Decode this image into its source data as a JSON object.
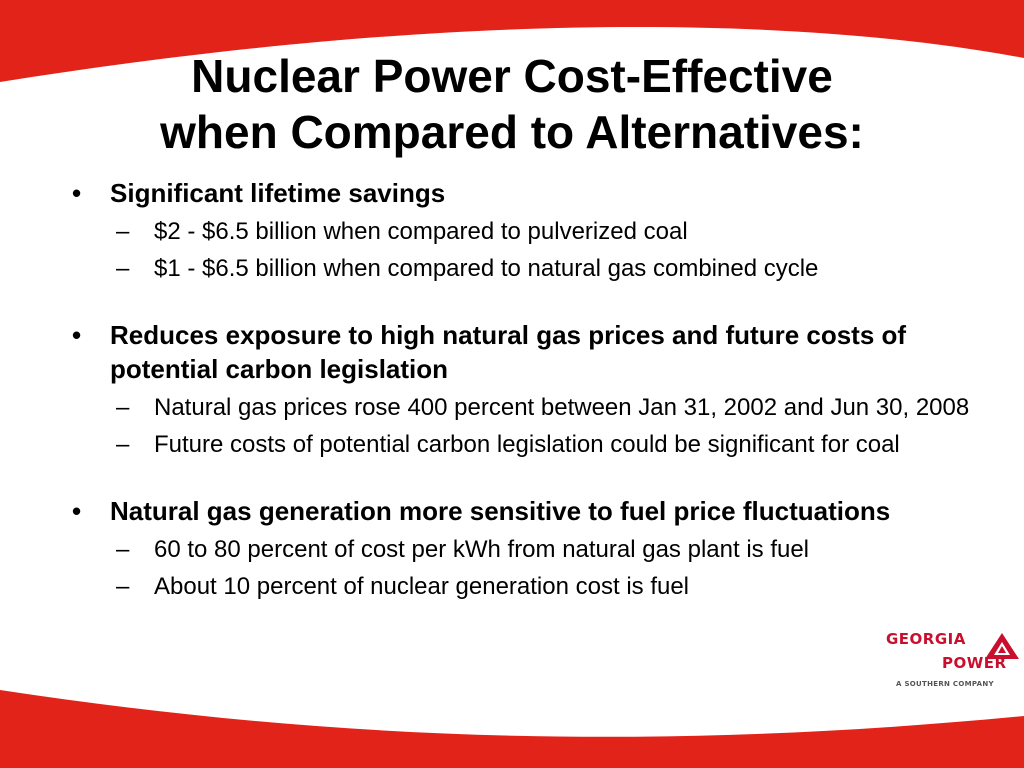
{
  "theme": {
    "accent": "#e2231a",
    "text": "#000000",
    "background": "#ffffff"
  },
  "title": {
    "line1": "Nuclear Power Cost-Effective",
    "line2": "when Compared to Alternatives:"
  },
  "bullet_glyph": "•",
  "dash_glyph": "–",
  "bullets": [
    {
      "text": "Significant lifetime savings",
      "subs": [
        "$2 - $6.5 billion when compared to pulverized coal",
        "$1 - $6.5 billion when compared to natural gas combined cycle"
      ]
    },
    {
      "text": "Reduces exposure to high natural gas prices and future costs of potential carbon legislation",
      "subs": [
        "Natural gas prices rose 400 percent between Jan 31, 2002 and Jun 30, 2008",
        "Future costs of potential carbon legislation could be significant for coal"
      ]
    },
    {
      "text": "Natural gas generation more sensitive to fuel price fluctuations",
      "subs": [
        "60 to 80 percent of cost per kWh from natural gas plant is fuel",
        "About 10 percent of nuclear generation cost is fuel"
      ]
    }
  ],
  "logo": {
    "line1": "GEORGIA",
    "line2": "POWER",
    "line3": "A SOUTHERN COMPANY",
    "color": "#c8102e"
  }
}
